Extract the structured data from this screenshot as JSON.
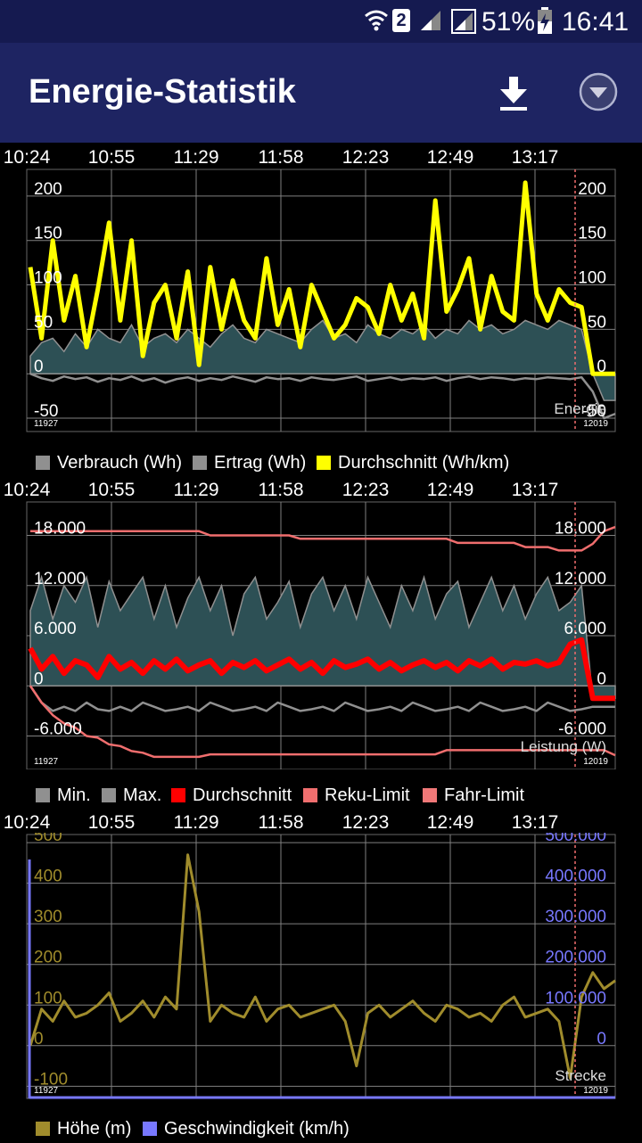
{
  "status_bar": {
    "sim_badge": "2",
    "battery": "51%",
    "time": "16:41",
    "icons": [
      "wifi-icon",
      "sim-icon",
      "signal-icon",
      "signal-icon",
      "battery-charging-icon"
    ]
  },
  "app_bar": {
    "title": "Energie-Statistik",
    "download_icon": "download-icon",
    "menu_icon": "chevron-down-circle-icon"
  },
  "time_labels": [
    "10:24",
    "10:55",
    "11:29",
    "11:58",
    "12:23",
    "12:49",
    "13:17"
  ],
  "colors": {
    "background": "#000000",
    "appbar": "#1e2462",
    "statusbar": "#151a50",
    "grid": "#808080",
    "fill": "#2d5055",
    "yellow": "#ffff00",
    "red": "#ff0000",
    "limit": "#f06e6e",
    "hoehe": "#a08c2c",
    "speed": "#7878ff"
  },
  "charts": {
    "energie": {
      "name": "Energie",
      "left_id": "11927",
      "right_id": "12019",
      "y_labels": [
        "200",
        "150",
        "100",
        "50",
        "0",
        "-50"
      ],
      "y_labels_right": [
        "200",
        "150",
        "100",
        "50",
        "0",
        "-50"
      ],
      "legend": [
        {
          "label": "Verbrauch (Wh)",
          "color": "#909090"
        },
        {
          "label": "Ertrag (Wh)",
          "color": "#909090"
        },
        {
          "label": "Durchschnitt (Wh/km)",
          "color": "#ffff00"
        }
      ]
    },
    "leistung": {
      "name": "Leistung (W)",
      "left_id": "11927",
      "right_id": "12019",
      "y_labels": [
        "18.000",
        "12.000",
        "6.000",
        "0",
        "-6.000"
      ],
      "y_labels_right": [
        "18.000",
        "12.000",
        "6.000",
        "0",
        "-6.000"
      ],
      "legend": [
        {
          "label": "Min.",
          "color": "#909090"
        },
        {
          "label": "Max.",
          "color": "#909090"
        },
        {
          "label": "Durchschnitt",
          "color": "#ff0000"
        },
        {
          "label": "Reku-Limit",
          "color": "#f06e6e"
        },
        {
          "label": "Fahr-Limit",
          "color": "#f06e6e"
        }
      ]
    },
    "strecke": {
      "name": "Strecke",
      "left_id": "11927",
      "right_id": "12019",
      "y_labels": [
        "500",
        "400",
        "300",
        "200",
        "100",
        "0",
        "-100"
      ],
      "y_labels_right": [
        "500.000",
        "400.000",
        "300.000",
        "200.000",
        "100.000",
        "0"
      ],
      "legend": [
        {
          "label": "Höhe (m)",
          "color": "#a08c2c"
        },
        {
          "label": "Geschwindigkeit (km/h)",
          "color": "#7878ff"
        }
      ]
    }
  },
  "chart_data": [
    {
      "type": "line",
      "title": "Energie",
      "x_ticks": [
        "10:24",
        "10:55",
        "11:29",
        "11:58",
        "12:23",
        "12:49",
        "13:17"
      ],
      "ylim": [
        -65,
        230
      ],
      "series": [
        {
          "name": "Verbrauch (Wh)",
          "type": "area",
          "color": "#909090",
          "values": [
            20,
            35,
            40,
            25,
            45,
            30,
            50,
            40,
            35,
            55,
            30,
            40,
            45,
            35,
            50,
            40,
            30,
            45,
            55,
            40,
            35,
            50,
            45,
            40,
            35,
            50,
            60,
            40,
            45,
            35,
            55,
            45,
            40,
            50,
            45,
            55,
            40,
            50,
            45,
            60,
            50,
            55,
            45,
            50,
            60,
            55,
            50,
            60,
            55,
            50,
            0,
            -30,
            -30
          ]
        },
        {
          "name": "Ertrag (Wh)",
          "type": "line",
          "color": "#909090",
          "values": [
            0,
            -5,
            -8,
            -3,
            -6,
            -4,
            -9,
            -5,
            -7,
            -3,
            -8,
            -5,
            -10,
            -6,
            -4,
            -8,
            -5,
            -7,
            -3,
            -6,
            -9,
            -4,
            -6,
            -5,
            -8,
            -4,
            -6,
            -7,
            -5,
            -3,
            -8,
            -6,
            -4,
            -7,
            -5,
            -6,
            -4,
            -8,
            -5,
            -3,
            -6,
            -4,
            -5,
            -7,
            -5,
            -6,
            -4,
            -5,
            -6,
            -4,
            -20,
            -50,
            -45
          ]
        },
        {
          "name": "Durchschnitt (Wh/km)",
          "type": "line",
          "color": "#ffff00",
          "values": [
            120,
            40,
            150,
            60,
            110,
            30,
            95,
            170,
            60,
            150,
            20,
            80,
            100,
            40,
            115,
            10,
            120,
            50,
            105,
            60,
            40,
            130,
            55,
            95,
            30,
            100,
            70,
            40,
            55,
            85,
            75,
            45,
            100,
            60,
            90,
            40,
            195,
            70,
            95,
            130,
            50,
            110,
            70,
            60,
            215,
            90,
            60,
            95,
            80,
            75,
            0,
            0,
            0
          ]
        }
      ]
    },
    {
      "type": "line",
      "title": "Leistung (W)",
      "x_ticks": [
        "10:24",
        "10:55",
        "11:29",
        "11:58",
        "12:23",
        "12:49",
        "13:17"
      ],
      "ylim": [
        -10000,
        22000
      ],
      "series": [
        {
          "name": "Min.",
          "type": "line",
          "color": "#909090",
          "values": [
            0,
            -2000,
            -3000,
            -2500,
            -3000,
            -2000,
            -2800,
            -3000,
            -2500,
            -3000,
            -2000,
            -2500,
            -3000,
            -2800,
            -2500,
            -3000,
            -2000,
            -2500,
            -3000,
            -2800,
            -2500,
            -3000,
            -2000,
            -2500,
            -3000,
            -2800,
            -2500,
            -3000,
            -2000,
            -2500,
            -3000,
            -2800,
            -2500,
            -3000,
            -2000,
            -2500,
            -3000,
            -2800,
            -2500,
            -3000,
            -2000,
            -2500,
            -3000,
            -2800,
            -2500,
            -3000,
            -2000,
            -2500,
            -3000,
            -2800,
            -2500,
            -2500,
            -2500
          ]
        },
        {
          "name": "Max.",
          "type": "area",
          "color": "#909090",
          "values": [
            9000,
            13000,
            8000,
            12000,
            10000,
            13000,
            7000,
            12500,
            9000,
            11000,
            13000,
            8000,
            12000,
            7000,
            10500,
            13000,
            9000,
            12000,
            6000,
            11000,
            13000,
            8000,
            10000,
            12500,
            7000,
            11000,
            13000,
            9000,
            12000,
            8000,
            13000,
            10000,
            7000,
            12000,
            9000,
            13000,
            8000,
            11000,
            12500,
            7000,
            10000,
            13000,
            9000,
            12000,
            8000,
            11000,
            13000,
            9000,
            10000,
            12000,
            -1500,
            -1500,
            -1500
          ]
        },
        {
          "name": "Durchschnitt",
          "type": "line",
          "color": "#ff0000",
          "values": [
            4500,
            2000,
            3500,
            1500,
            3000,
            2500,
            1000,
            3500,
            2000,
            2800,
            1500,
            3000,
            2000,
            3200,
            1800,
            2500,
            3000,
            1500,
            2800,
            2200,
            3000,
            1800,
            2500,
            3200,
            2000,
            2800,
            1500,
            3000,
            2200,
            2600,
            3200,
            2000,
            2800,
            1800,
            2500,
            3000,
            2200,
            2800,
            1800,
            3000,
            2400,
            3200,
            2000,
            2800,
            2600,
            3000,
            2400,
            2800,
            5000,
            5500,
            -1500,
            -1500,
            -1500
          ]
        },
        {
          "name": "Reku-Limit",
          "type": "line",
          "color": "#f06e6e",
          "values": [
            18500,
            18500,
            18500,
            18500,
            18500,
            18500,
            18500,
            18500,
            18500,
            18500,
            18500,
            18500,
            18500,
            18500,
            18500,
            18500,
            18000,
            18000,
            18000,
            18000,
            18000,
            18000,
            18000,
            18000,
            17600,
            17600,
            17600,
            17600,
            17600,
            17600,
            17600,
            17600,
            17600,
            17600,
            17600,
            17600,
            17600,
            17600,
            17100,
            17100,
            17100,
            17100,
            17100,
            17100,
            16600,
            16600,
            16600,
            16200,
            16200,
            16200,
            17000,
            18500,
            19000
          ]
        },
        {
          "name": "Fahr-Limit",
          "type": "line",
          "color": "#f06e6e",
          "values": [
            0,
            -2000,
            -3500,
            -4500,
            -5000,
            -6000,
            -6200,
            -7000,
            -7200,
            -7800,
            -8000,
            -8500,
            -8500,
            -8500,
            -8500,
            -8500,
            -8200,
            -8200,
            -8200,
            -8200,
            -8200,
            -8200,
            -8200,
            -8200,
            -8200,
            -8200,
            -8200,
            -8200,
            -8200,
            -8200,
            -8200,
            -8200,
            -8200,
            -8200,
            -8200,
            -8200,
            -8200,
            -7700,
            -7700,
            -7700,
            -7700,
            -7700,
            -7700,
            -7700,
            -7700,
            -7700,
            -7700,
            -7700,
            -7700,
            -7700,
            -7700,
            -7700,
            -8300
          ]
        }
      ]
    },
    {
      "type": "line",
      "title": "Strecke",
      "x_ticks": [
        "10:24",
        "10:55",
        "11:29",
        "11:58",
        "12:23",
        "12:49",
        "13:17"
      ],
      "ylim": [
        -130,
        520
      ],
      "series": [
        {
          "name": "Höhe (m)",
          "type": "line",
          "color": "#a08c2c",
          "values": [
            0,
            90,
            60,
            110,
            70,
            80,
            100,
            130,
            60,
            80,
            110,
            70,
            120,
            90,
            470,
            330,
            60,
            100,
            80,
            70,
            120,
            60,
            90,
            100,
            70,
            80,
            90,
            100,
            60,
            -50,
            80,
            100,
            70,
            90,
            110,
            80,
            60,
            100,
            90,
            70,
            80,
            60,
            100,
            120,
            70,
            80,
            90,
            60,
            -80,
            120,
            180,
            140,
            160
          ]
        },
        {
          "name": "Geschwindigkeit (km/h)",
          "type": "line",
          "color": "#7878ff",
          "values": [
            0
          ]
        }
      ]
    }
  ]
}
